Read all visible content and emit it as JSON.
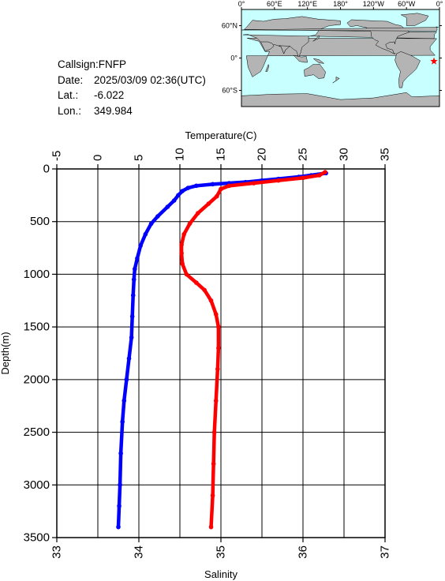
{
  "info": {
    "callsign": "Callsign:FNFP",
    "date_label": "Date:",
    "date_value": "2025/03/09 02:36(UTC)",
    "lat_label": "Lat.:",
    "lat_value": "-6.022",
    "lon_label": "Lon.:",
    "lon_value": "349.984"
  },
  "map": {
    "lon_ticks": [
      "0°",
      "60°E",
      "120°E",
      "180°",
      "120°W",
      "60°W",
      "0°"
    ],
    "lat_ticks": [
      "60°N",
      "0°",
      "60°S"
    ],
    "marker_lon": 349.984,
    "marker_lat": -6.022,
    "ocean_color": "#c8ffff",
    "land_color": "#b4b4b4",
    "marker_color": "#ff0000"
  },
  "chart_data": {
    "type": "line",
    "ylabel": "Depth(m)",
    "ylim": [
      0,
      3500
    ],
    "y_ticks": [
      "0",
      "500",
      "1000",
      "1500",
      "2000",
      "2500",
      "3000",
      "3500"
    ],
    "top_axis": {
      "label": "Temperature(C)",
      "range": [
        -5,
        35
      ],
      "ticks": [
        "-5",
        "0",
        "5",
        "10",
        "15",
        "20",
        "25",
        "30",
        "35"
      ]
    },
    "bottom_axis": {
      "label": "Salinity",
      "range": [
        33,
        37
      ],
      "ticks": [
        "33",
        "34",
        "35",
        "36",
        "37"
      ]
    },
    "grid": true,
    "series": [
      {
        "color": "#0000ff",
        "axis": "top",
        "points": [
          [
            27.8,
            40
          ],
          [
            26.0,
            60
          ],
          [
            24.5,
            75
          ],
          [
            22.0,
            95
          ],
          [
            20.0,
            110
          ],
          [
            18.0,
            125
          ],
          [
            16.0,
            135
          ],
          [
            14.0,
            145
          ],
          [
            12.0,
            160
          ],
          [
            11.0,
            180
          ],
          [
            10.3,
            210
          ],
          [
            9.8,
            250
          ],
          [
            9.3,
            300
          ],
          [
            8.5,
            360
          ],
          [
            7.3,
            450
          ],
          [
            6.5,
            520
          ],
          [
            5.8,
            620
          ],
          [
            5.2,
            730
          ],
          [
            4.8,
            850
          ],
          [
            4.5,
            950
          ],
          [
            4.4,
            1050
          ],
          [
            4.3,
            1200
          ],
          [
            4.2,
            1400
          ],
          [
            4.1,
            1600
          ],
          [
            3.8,
            1800
          ],
          [
            3.5,
            2000
          ],
          [
            3.2,
            2200
          ],
          [
            3.0,
            2400
          ],
          [
            2.8,
            2700
          ],
          [
            2.7,
            3000
          ],
          [
            2.6,
            3200
          ],
          [
            2.5,
            3400
          ]
        ]
      },
      {
        "color": "#ff0000",
        "axis": "bottom",
        "points": [
          [
            36.27,
            30
          ],
          [
            36.2,
            60
          ],
          [
            36.0,
            85
          ],
          [
            35.7,
            110
          ],
          [
            35.4,
            135
          ],
          [
            35.1,
            160
          ],
          [
            35.0,
            190
          ],
          [
            34.95,
            260
          ],
          [
            34.85,
            330
          ],
          [
            34.72,
            420
          ],
          [
            34.62,
            520
          ],
          [
            34.55,
            620
          ],
          [
            34.52,
            720
          ],
          [
            34.52,
            800
          ],
          [
            34.53,
            900
          ],
          [
            34.58,
            1000
          ],
          [
            34.7,
            1080
          ],
          [
            34.8,
            1150
          ],
          [
            34.88,
            1250
          ],
          [
            34.94,
            1380
          ],
          [
            34.97,
            1500
          ],
          [
            34.97,
            1700
          ],
          [
            34.96,
            1900
          ],
          [
            34.94,
            2200
          ],
          [
            34.92,
            2500
          ],
          [
            34.91,
            2800
          ],
          [
            34.9,
            3100
          ],
          [
            34.88,
            3400
          ]
        ]
      }
    ]
  }
}
